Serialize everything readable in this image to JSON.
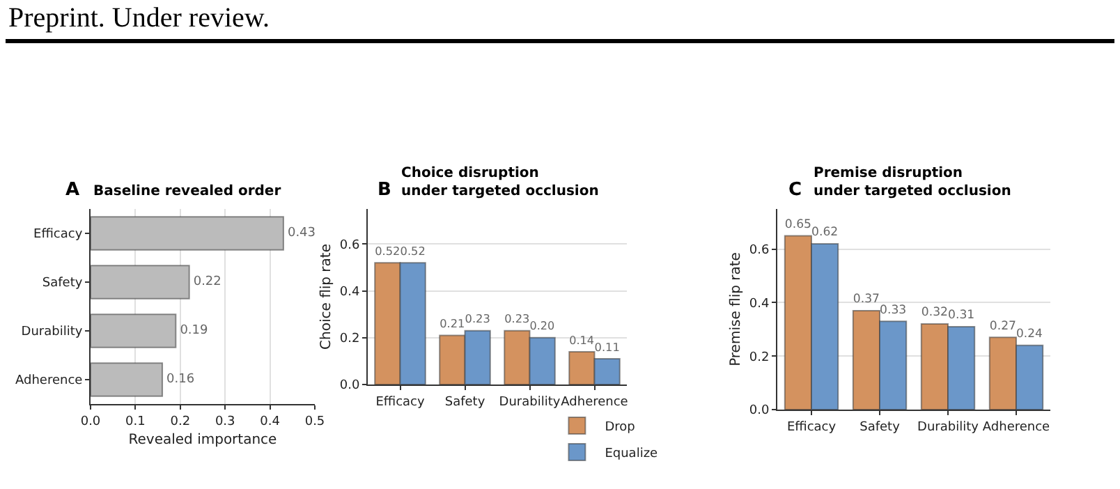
{
  "chart_data": [
    {
      "type": "bar",
      "orientation": "horizontal",
      "title": "Baseline revealed order",
      "xlabel": "Revealed importance",
      "annotations": [
        "A",
        "Preprint. Under review."
      ],
      "categories": [
        "Efficacy",
        "Safety",
        "Durability",
        "Adherence"
      ],
      "series": [
        {
          "color": "#bbbbbb",
          "values": [
            0.43,
            0.22,
            0.19,
            0.16
          ],
          "value_labels": [
            "0.43",
            "0.22",
            "0.19",
            "0.16"
          ]
        }
      ],
      "xlim": [
        0,
        0.5
      ],
      "xticks": [
        {
          "value": 0,
          "label": "0.0"
        },
        0.1,
        0.2,
        0.3,
        0.4,
        0.5
      ],
      "grid": "x"
    },
    {
      "type": "bar",
      "title": "Choice disruption\nunder targeted occlusion",
      "ylabel": "Choice flip rate",
      "annotations": [
        "B"
      ],
      "categories": [
        "Efficacy",
        "Safety",
        "Durability",
        "Adherence"
      ],
      "series": [
        {
          "name": "Drop",
          "color": "#d4925f",
          "values": [
            0.52,
            0.21,
            0.23,
            0.14
          ],
          "value_labels": [
            "0.52",
            "0.21",
            "0.23",
            "0.14"
          ]
        },
        {
          "name": "Equalize",
          "color": "#6b97c9",
          "values": [
            0.52,
            0.23,
            0.2,
            0.11
          ],
          "value_labels": [
            "0.52",
            "0.23",
            "0.20",
            "0.11"
          ]
        }
      ],
      "ylim": [
        0,
        0.75
      ],
      "yticks": [
        {
          "value": 0,
          "label": "0.0"
        },
        0.2,
        0.4,
        0.6
      ],
      "grid": "y",
      "legend": "bottom"
    },
    {
      "type": "bar",
      "title": "Premise disruption\nunder targeted occlusion",
      "ylabel": "Premise flip rate",
      "annotations": [
        "C"
      ],
      "categories": [
        "Efficacy",
        "Safety",
        "Durability",
        "Adherence"
      ],
      "series": [
        {
          "color": "#d4925f",
          "values": [
            0.65,
            0.37,
            0.32,
            0.27
          ],
          "value_labels": [
            "0.65",
            "0.37",
            "0.32",
            "0.27"
          ]
        },
        {
          "color": "#6b97c9",
          "values": [
            0.62,
            0.33,
            0.31,
            0.24
          ],
          "value_labels": [
            "0.62",
            "0.33",
            "0.31",
            "0.24"
          ]
        }
      ],
      "ylim": [
        0,
        0.75
      ],
      "yticks": [
        {
          "value": 0,
          "label": "0.0"
        },
        0.2,
        0.4,
        0.6
      ],
      "grid": "y"
    }
  ]
}
